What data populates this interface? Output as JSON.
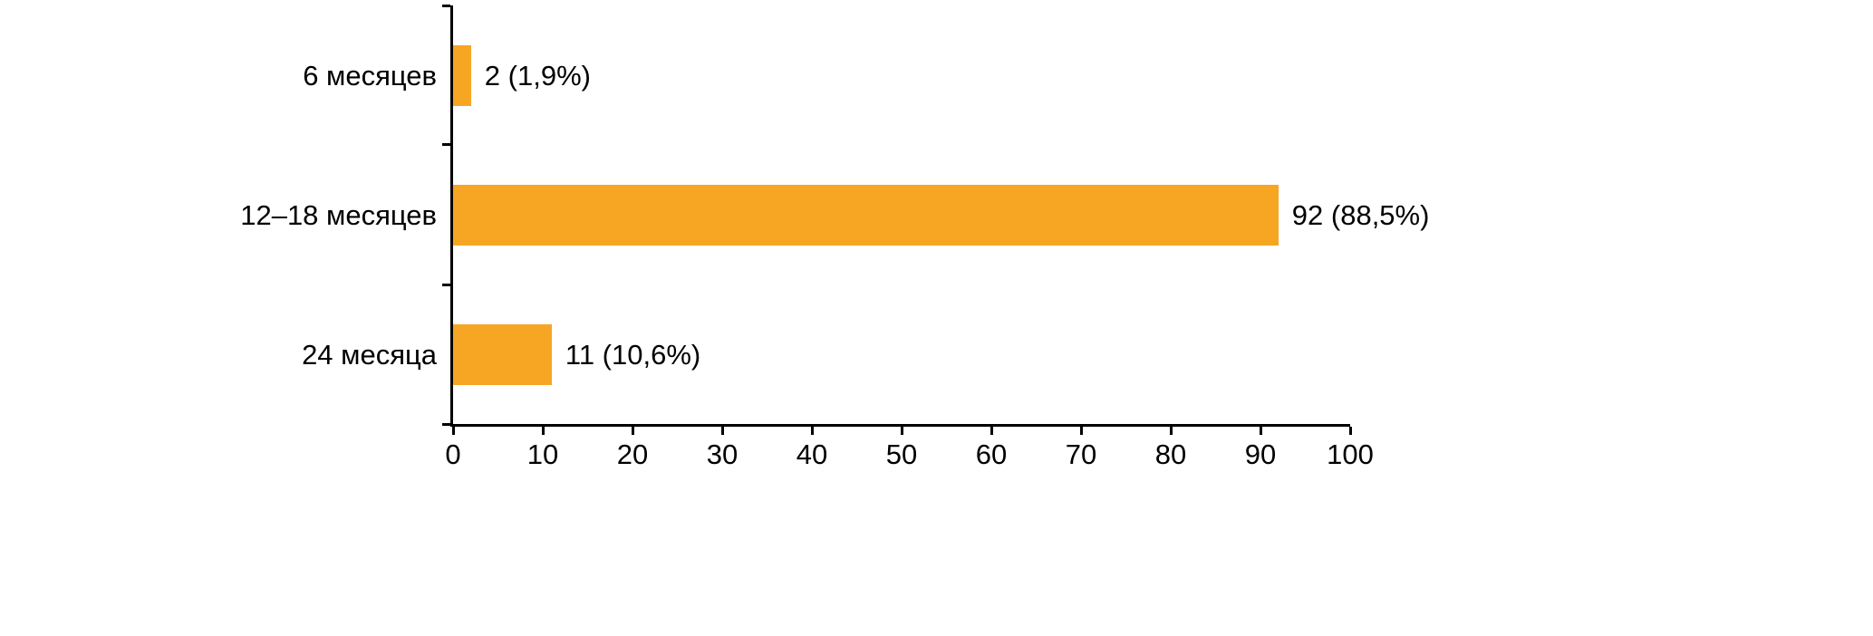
{
  "chart_data": {
    "type": "bar",
    "orientation": "horizontal",
    "title": "",
    "xlabel": "",
    "ylabel": "",
    "categories": [
      "6 месяцев",
      "12–18 месяцев",
      "24 месяца"
    ],
    "values": [
      2,
      92,
      11
    ],
    "value_labels": [
      "2 (1,9%)",
      "92 (88,5%)",
      "11 (10,6%)"
    ],
    "xlim": [
      0,
      100
    ],
    "x_ticks": [
      0,
      10,
      20,
      30,
      40,
      50,
      60,
      70,
      80,
      90,
      100
    ],
    "grid": "off",
    "legend": "none",
    "bar_color": "#F6A623",
    "axis_color": "#000000",
    "background_color": "#ffffff"
  }
}
